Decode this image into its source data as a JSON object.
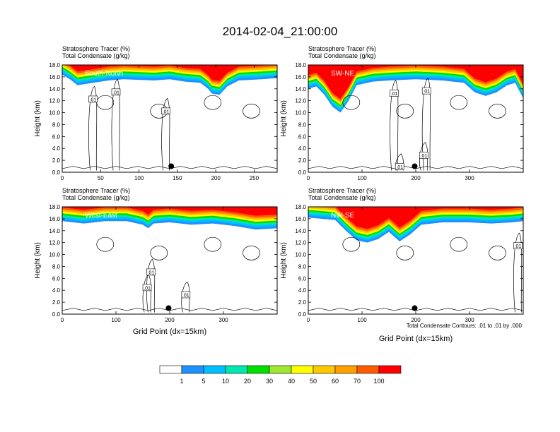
{
  "figure_title": "2014-02-04_21:00:00",
  "footnote": "Total Condensate Contours: .01 to .01 by .000",
  "colors": {
    "levels": [
      "#ffffff",
      "#1e90ff",
      "#00bfff",
      "#00e8b0",
      "#00e000",
      "#a0e830",
      "#ffff00",
      "#ffc800",
      "#ffa000",
      "#ff5a00",
      "#ff0000"
    ],
    "contour": "#000000",
    "marker": "#000000"
  },
  "chart_data": [
    {
      "type": "heatmap",
      "panel_label": "South-North",
      "line1": "Stratosphere Tracer   (%)",
      "line2": "Total Condensate   (g/kg)",
      "ylabel": "Height (km)",
      "xlabel": "",
      "xlim": [
        0,
        280
      ],
      "xticks": [
        0,
        50,
        100,
        150,
        200,
        250
      ],
      "ylim": [
        0,
        18
      ],
      "yticks": [
        "0.0",
        "2.0",
        "4.0",
        "6.0",
        "8.0",
        "10.0",
        "12.0",
        "14.0",
        "16.0",
        "18.0"
      ],
      "tracer_profile": [
        [
          0,
          16.4
        ],
        [
          10,
          15.6
        ],
        [
          20,
          14.6
        ],
        [
          30,
          14.8
        ],
        [
          40,
          15.0
        ],
        [
          60,
          15.4
        ],
        [
          80,
          15.6
        ],
        [
          100,
          15.5
        ],
        [
          120,
          15.4
        ],
        [
          140,
          15.6
        ],
        [
          160,
          15.2
        ],
        [
          180,
          15.0
        ],
        [
          190,
          14.0
        ],
        [
          195,
          13.2
        ],
        [
          205,
          13.0
        ],
        [
          215,
          14.4
        ],
        [
          230,
          15.4
        ],
        [
          260,
          15.6
        ],
        [
          280,
          15.8
        ]
      ],
      "contour_labels": [
        {
          "text": ".01",
          "x": 40,
          "y": 12.2
        },
        {
          "text": ".01",
          "x": 70,
          "y": 13.4
        },
        {
          "text": ".01",
          "x": 135,
          "y": 10.2
        }
      ],
      "marker": {
        "x": 142,
        "y": 1.0
      }
    },
    {
      "type": "heatmap",
      "panel_label": "SW-NE",
      "line1": "Stratosphere Tracer   (%)",
      "line2": "Total Condensate   (g/kg)",
      "ylabel": "Height (km)",
      "xlabel": "",
      "xlim": [
        0,
        400
      ],
      "xticks": [
        0,
        100,
        200,
        300
      ],
      "ylim": [
        0,
        18
      ],
      "yticks": [
        "0.0",
        "2.0",
        "4.0",
        "6.0",
        "8.0",
        "10.0",
        "12.0",
        "14.0",
        "16.0",
        "18.0"
      ],
      "tracer_profile": [
        [
          0,
          14.0
        ],
        [
          15,
          14.4
        ],
        [
          30,
          13.0
        ],
        [
          45,
          11.0
        ],
        [
          60,
          10.0
        ],
        [
          75,
          12.0
        ],
        [
          90,
          14.6
        ],
        [
          120,
          15.2
        ],
        [
          150,
          15.4
        ],
        [
          200,
          15.6
        ],
        [
          250,
          15.4
        ],
        [
          290,
          15.0
        ],
        [
          310,
          13.4
        ],
        [
          330,
          12.8
        ],
        [
          350,
          13.4
        ],
        [
          370,
          14.6
        ],
        [
          385,
          15.0
        ],
        [
          400,
          12.4
        ]
      ],
      "contour_labels": [
        {
          "text": ".01",
          "x": 160,
          "y": 13.2
        },
        {
          "text": ".01",
          "x": 220,
          "y": 13.6
        },
        {
          "text": ".01",
          "x": 215,
          "y": 2.8
        },
        {
          "text": ".01",
          "x": 170,
          "y": 0.9
        }
      ],
      "marker": {
        "x": 198,
        "y": 1.0
      }
    },
    {
      "type": "heatmap",
      "panel_label": "West-East",
      "line1": "Stratosphere Tracer   (%)",
      "line2": "Total Condensate   (g/kg)",
      "ylabel": "Height (km)",
      "xlabel": "Grid Point (dx=15km)",
      "xlim": [
        0,
        400
      ],
      "xticks": [
        0,
        100,
        200,
        300
      ],
      "ylim": [
        0,
        18
      ],
      "yticks": [
        "0.0",
        "2.0",
        "4.0",
        "6.0",
        "8.0",
        "10.0",
        "12.0",
        "14.0",
        "16.0",
        "18.0"
      ],
      "tracer_profile": [
        [
          0,
          15.6
        ],
        [
          40,
          15.2
        ],
        [
          80,
          15.6
        ],
        [
          120,
          15.6
        ],
        [
          150,
          15.0
        ],
        [
          160,
          14.4
        ],
        [
          170,
          15.2
        ],
        [
          200,
          15.4
        ],
        [
          240,
          15.0
        ],
        [
          280,
          15.2
        ],
        [
          320,
          14.8
        ],
        [
          360,
          14.2
        ],
        [
          400,
          14.4
        ]
      ],
      "contour_labels": [
        {
          "text": ".01",
          "x": 165,
          "y": 7.0
        },
        {
          "text": ".01",
          "x": 158,
          "y": 4.4
        },
        {
          "text": ".01",
          "x": 230,
          "y": 3.2
        }
      ],
      "marker": {
        "x": 198,
        "y": 1.0
      }
    },
    {
      "type": "heatmap",
      "panel_label": "NW-SE",
      "line1": "Stratosphere Tracer   (%)",
      "line2": "Total Condensate   (g/kg)",
      "ylabel": "Height (km)",
      "xlabel": "Grid Point (dx=15km)",
      "xlim": [
        0,
        400
      ],
      "xticks": [
        0,
        100,
        200,
        300
      ],
      "ylim": [
        0,
        18
      ],
      "yticks": [
        "0.0",
        "2.0",
        "4.0",
        "6.0",
        "8.0",
        "10.0",
        "12.0",
        "14.0",
        "16.0",
        "18.0"
      ],
      "tracer_profile": [
        [
          0,
          16.2
        ],
        [
          50,
          15.8
        ],
        [
          70,
          14.0
        ],
        [
          90,
          12.4
        ],
        [
          110,
          12.0
        ],
        [
          130,
          12.6
        ],
        [
          150,
          13.8
        ],
        [
          170,
          12.2
        ],
        [
          190,
          13.4
        ],
        [
          210,
          15.0
        ],
        [
          250,
          15.4
        ],
        [
          300,
          15.4
        ],
        [
          340,
          15.2
        ],
        [
          380,
          15.4
        ],
        [
          400,
          15.6
        ]
      ],
      "contour_labels": [
        {
          "text": ".01",
          "x": 390,
          "y": 11.4
        }
      ],
      "marker": {
        "x": 198,
        "y": 1.0
      }
    }
  ],
  "colorbar": {
    "labels": [
      "1",
      "5",
      "10",
      "20",
      "30",
      "40",
      "50",
      "60",
      "70",
      "100"
    ]
  }
}
